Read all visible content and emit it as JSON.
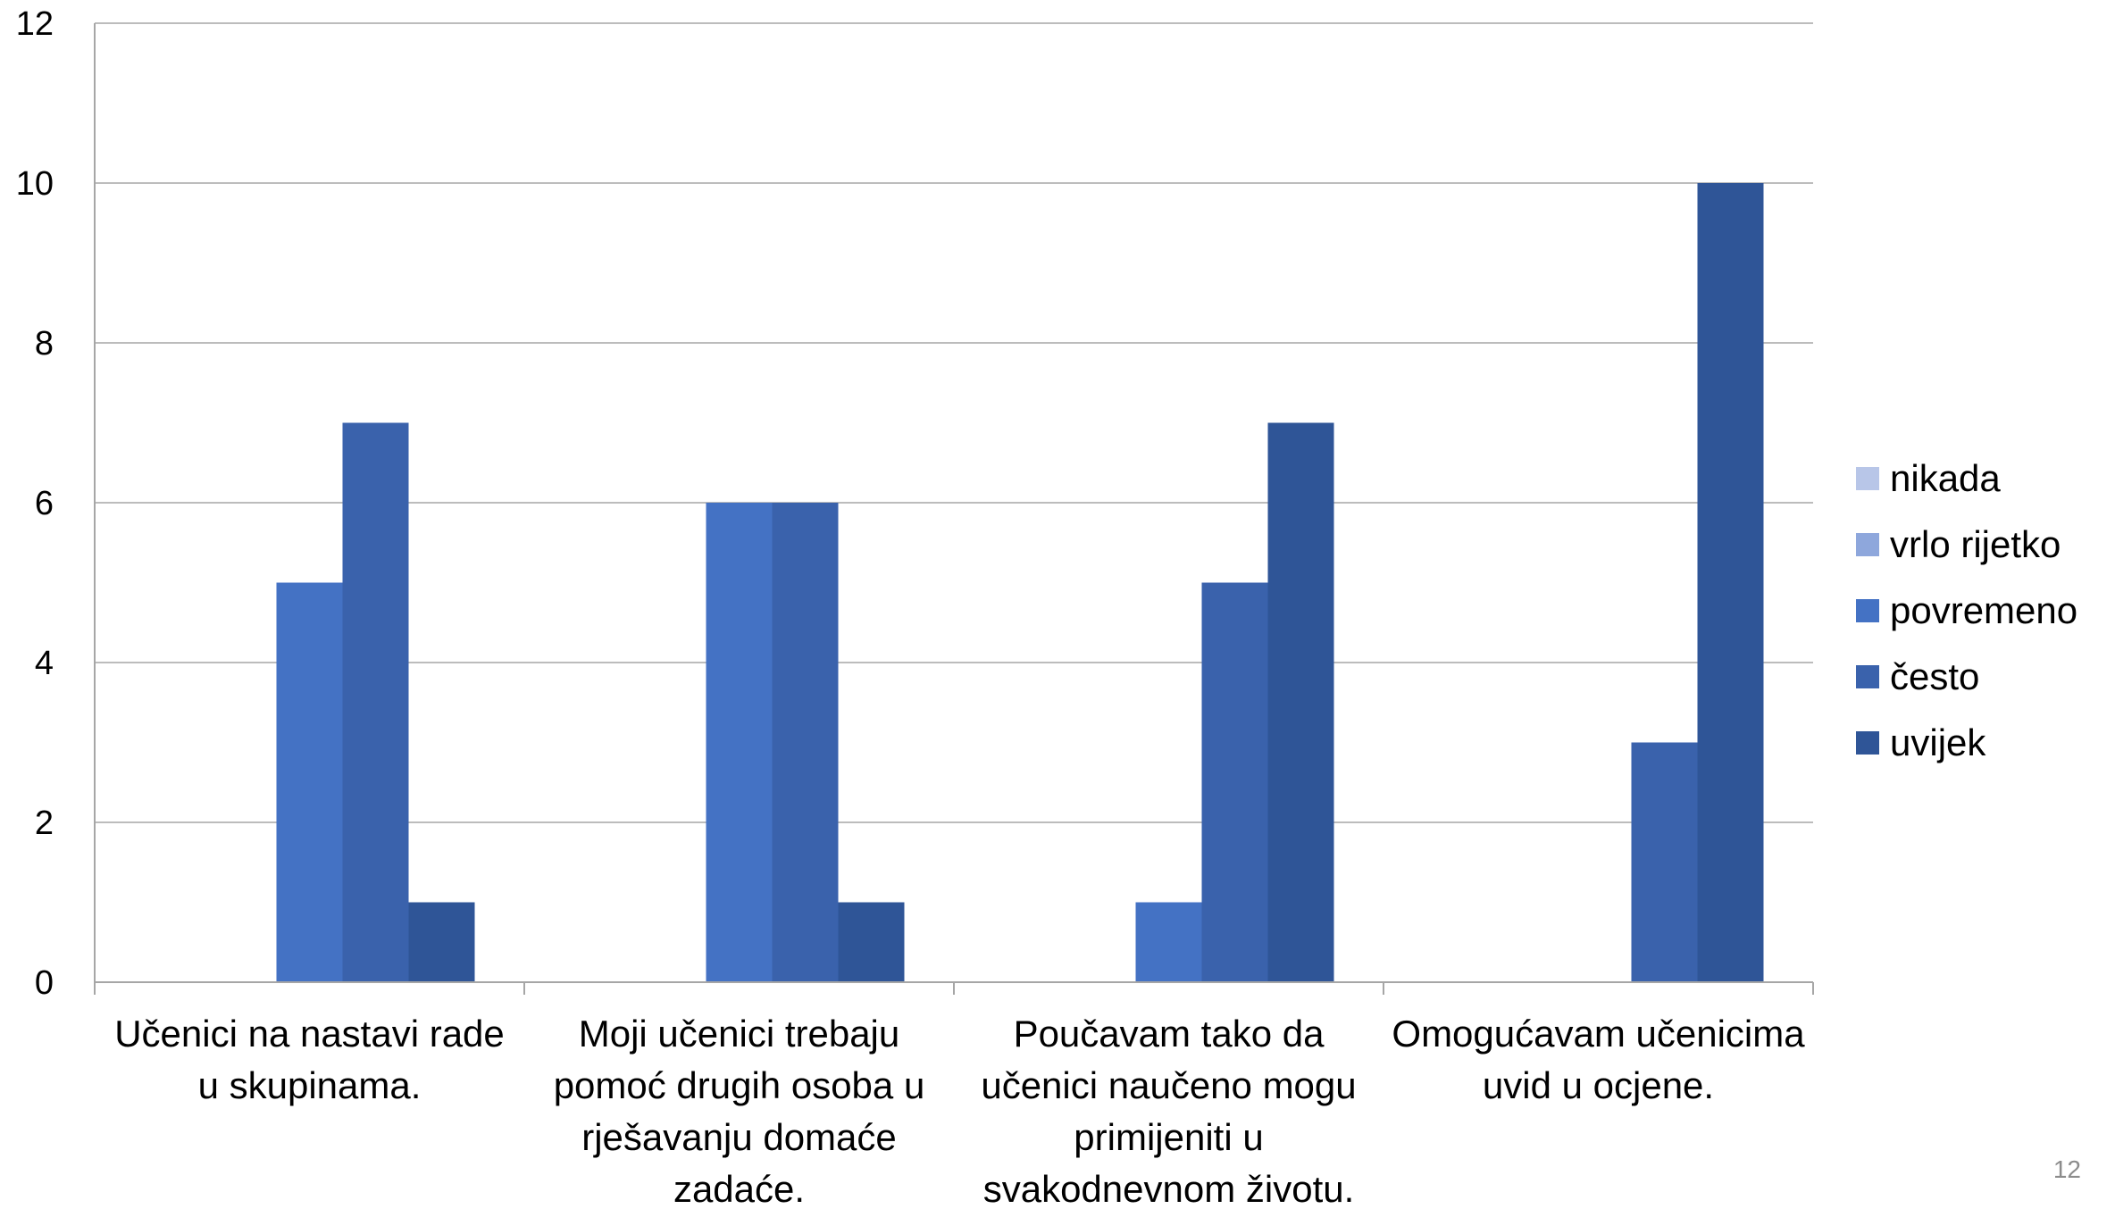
{
  "chart_data": {
    "type": "bar",
    "title": "",
    "xlabel": "",
    "ylabel": "",
    "ylim": [
      0,
      12
    ],
    "yticks": [
      0,
      2,
      4,
      6,
      8,
      10,
      12
    ],
    "grid": true,
    "legend_position": "right",
    "categories": [
      [
        "Učenici na nastavi rade",
        "u skupinama."
      ],
      [
        "Moji učenici trebaju",
        "pomoć drugih osoba u",
        "rješavanju domaće",
        "zadaće."
      ],
      [
        "Poučavam tako da",
        "učenici naučeno mogu",
        "primijeniti u",
        "svakodnevnom životu."
      ],
      [
        "Omogućavam učenicima",
        "uvid u ocjene."
      ]
    ],
    "series": [
      {
        "name": "nikada",
        "color": "#B8C6E8",
        "values": [
          0,
          0,
          0,
          0
        ]
      },
      {
        "name": "vrlo rijetko",
        "color": "#8EA7DC",
        "values": [
          0,
          0,
          0,
          0
        ]
      },
      {
        "name": "povremeno",
        "color": "#4472C4",
        "values": [
          5,
          6,
          1,
          0
        ]
      },
      {
        "name": "često",
        "color": "#3A62AC",
        "values": [
          7,
          6,
          5,
          3
        ]
      },
      {
        "name": "uvijek",
        "color": "#2F5597",
        "values": [
          1,
          1,
          7,
          10
        ]
      }
    ]
  },
  "page_number": "12"
}
